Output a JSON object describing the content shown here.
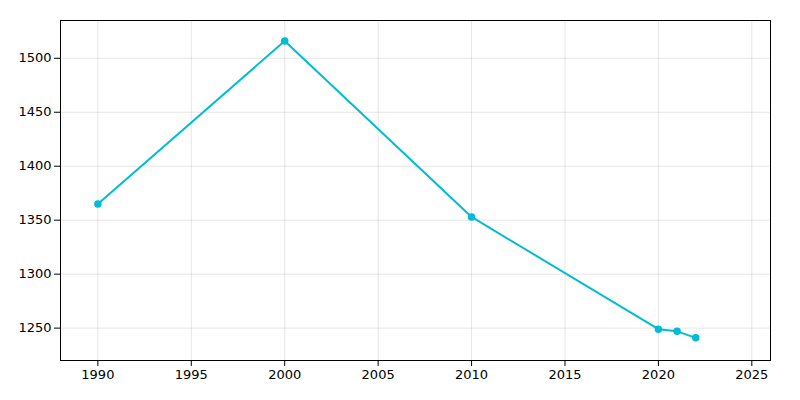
{
  "chart_data": {
    "type": "line",
    "x": [
      1990,
      2000,
      2010,
      2020,
      2021,
      2022
    ],
    "values": [
      1365,
      1516,
      1353,
      1249,
      1247,
      1241
    ],
    "color": "#00BCD4",
    "marker": "circle",
    "xlim": [
      1988,
      2026
    ],
    "ylim": [
      1220,
      1535
    ],
    "xticks": [
      1990,
      1995,
      2000,
      2005,
      2010,
      2015,
      2020,
      2025
    ],
    "yticks": [
      1250,
      1300,
      1350,
      1400,
      1450,
      1500
    ],
    "grid": true
  }
}
